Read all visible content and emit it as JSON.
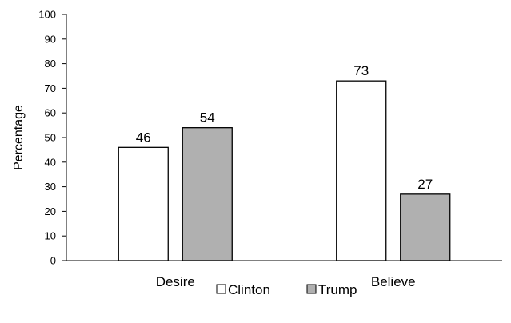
{
  "chart_data": {
    "type": "bar",
    "title": "",
    "xlabel": "",
    "ylabel": "Percentage",
    "ylim": [
      0,
      100
    ],
    "yticks": [
      0,
      10,
      20,
      30,
      40,
      50,
      60,
      70,
      80,
      90,
      100
    ],
    "categories": [
      "Desire",
      "Believe"
    ],
    "series": [
      {
        "name": "Clinton",
        "values": [
          46,
          73
        ],
        "color": "#ffffff"
      },
      {
        "name": "Trump",
        "values": [
          54,
          27
        ],
        "color": "#b0b0b0"
      }
    ],
    "legend_position": "bottom",
    "grid": false,
    "bar_outline_color": "#000000"
  }
}
